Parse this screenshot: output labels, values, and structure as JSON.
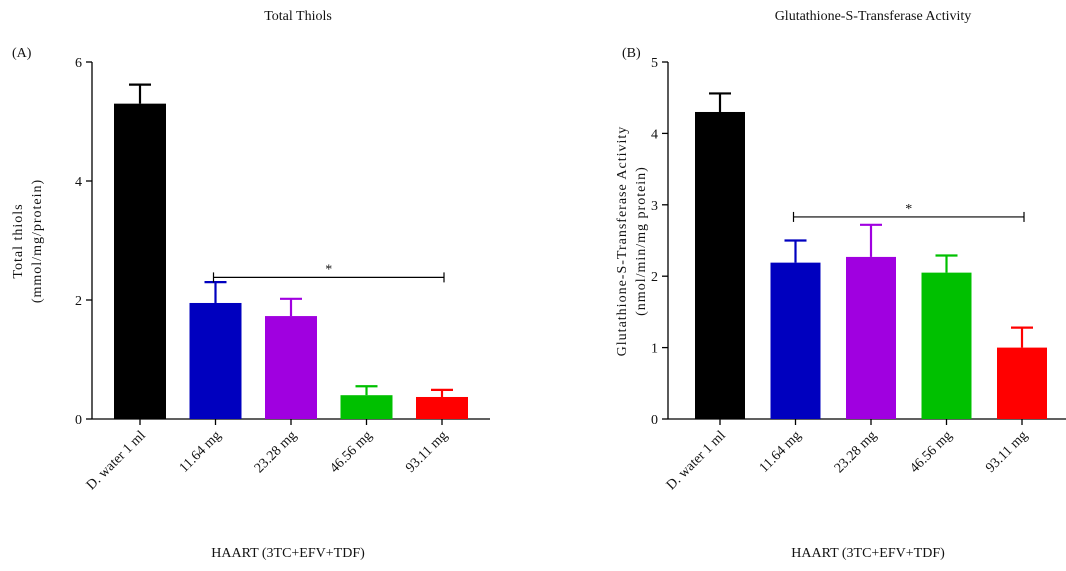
{
  "chart_data": [
    {
      "type": "bar",
      "panel_label": "(A)",
      "title": "Total Thiols",
      "ylabel_lines": [
        "Total thiols",
        "(mmol/mg/protein)"
      ],
      "xlabel": "HAART (3TC+EFV+TDF)",
      "categories": [
        "D. water 1 ml",
        "11.64 mg",
        "23.28 mg",
        "46.56 mg",
        "93.11 mg"
      ],
      "values": [
        5.3,
        1.95,
        1.73,
        0.4,
        0.37
      ],
      "errors": [
        0.32,
        0.35,
        0.29,
        0.15,
        0.12
      ],
      "colors": [
        "#000000",
        "#0000bf",
        "#a000e0",
        "#00c000",
        "#ff0000"
      ],
      "ylim": [
        0,
        6
      ],
      "yticks": [
        0,
        2,
        4,
        6
      ],
      "significance": {
        "label": "*",
        "from": 1,
        "to": 4,
        "y": 2.38
      }
    },
    {
      "type": "bar",
      "panel_label": "(B)",
      "title": "Glutathione-S-Transferase Activity",
      "ylabel_lines": [
        "Glutathione-S-Transferase Activity",
        "(nmol/min/mg protein)"
      ],
      "xlabel": "HAART (3TC+EFV+TDF)",
      "categories": [
        "D. water 1 ml",
        "11.64 mg",
        "23.28 mg",
        "46.56 mg",
        "93.11 mg"
      ],
      "values": [
        4.3,
        2.19,
        2.27,
        2.05,
        1.0
      ],
      "errors": [
        0.26,
        0.31,
        0.45,
        0.24,
        0.28
      ],
      "colors": [
        "#000000",
        "#0000bf",
        "#a000e0",
        "#00c000",
        "#ff0000"
      ],
      "ylim": [
        0,
        5
      ],
      "yticks": [
        0,
        1,
        2,
        3,
        4,
        5
      ],
      "significance": {
        "label": "*",
        "from": 1,
        "to": 4,
        "y": 2.83
      }
    }
  ]
}
